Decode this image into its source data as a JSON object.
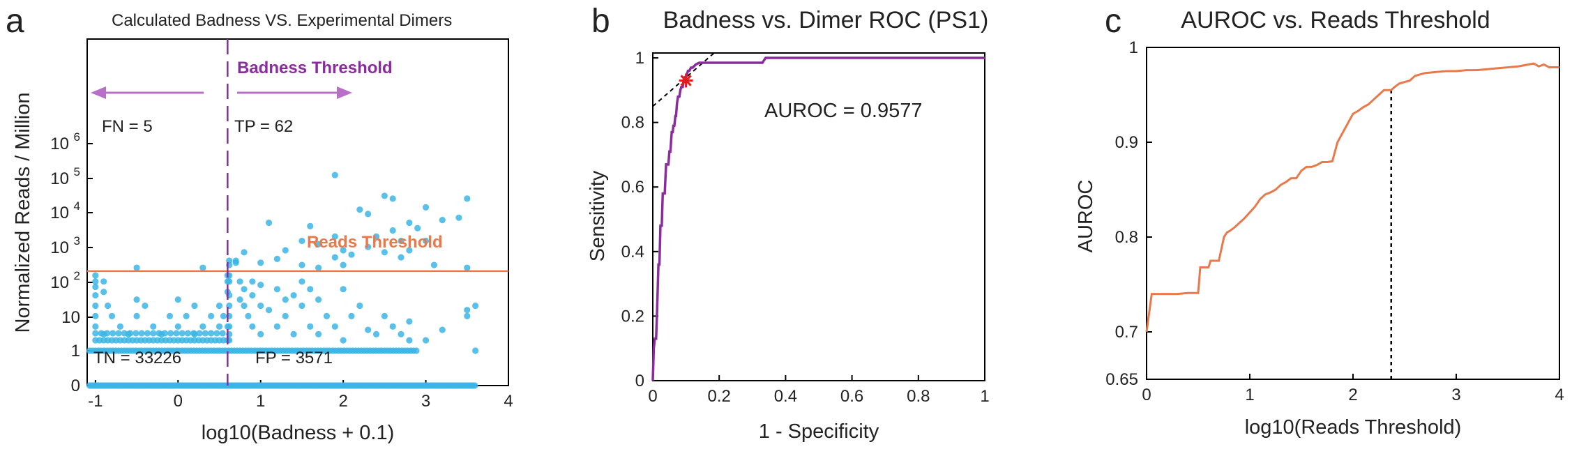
{
  "colors": {
    "scatter": "#3bb5e5",
    "purple": "#8a2b9e",
    "purple_arrow": "#b86fc8",
    "orange": "#e9794a",
    "black": "#000000"
  },
  "panels": {
    "a": {
      "letter": "a"
    },
    "b": {
      "letter": "b"
    },
    "c": {
      "letter": "c"
    }
  },
  "chart_data": [
    {
      "type": "scatter",
      "title": "Calculated Badness VS. Experimental Dimers",
      "xlabel": "log10(Badness + 0.1)",
      "ylabel": "Normalized Reads / Million",
      "xlim": [
        -1.1,
        4
      ],
      "xticks": [
        "-1",
        "0",
        "1",
        "2",
        "3",
        "4"
      ],
      "yscale": "log-like (0, 1, 10, 10^2 ... 10^6)",
      "yticks": [
        "0",
        "1",
        "10",
        "10",
        "10",
        "10",
        "10",
        "10"
      ],
      "ytick_exponents": [
        "",
        "",
        "",
        "2",
        "3",
        "4",
        "5",
        "6"
      ],
      "badness_threshold_x": 0.6,
      "reads_threshold_y": 200,
      "annotations": {
        "badness_threshold": "Badness Threshold",
        "reads_threshold": "Reads Threshold",
        "fn": "FN = 5",
        "tp": "TP = 62",
        "tn": "TN = 33226",
        "fp": "FP = 3571"
      },
      "points_high": [
        [
          -0.5,
          250
        ],
        [
          0.3,
          250
        ],
        [
          1.5,
          300
        ],
        [
          1.2,
          450
        ],
        [
          1.0,
          350
        ],
        [
          1.3,
          800
        ],
        [
          1.5,
          1500
        ],
        [
          1.7,
          1200
        ],
        [
          1.9,
          500
        ],
        [
          1.9,
          2000
        ],
        [
          2.0,
          800
        ],
        [
          2.1,
          600
        ],
        [
          2.2,
          12000
        ],
        [
          2.3,
          1000
        ],
        [
          2.3,
          9000
        ],
        [
          2.4,
          2000
        ],
        [
          2.5,
          30000
        ],
        [
          2.5,
          700
        ],
        [
          2.6,
          25000
        ],
        [
          2.6,
          3000
        ],
        [
          2.7,
          1500
        ],
        [
          2.7,
          500
        ],
        [
          2.8,
          5000
        ],
        [
          2.8,
          800
        ],
        [
          2.9,
          3500
        ],
        [
          3.0,
          14000
        ],
        [
          3.0,
          1500
        ],
        [
          3.1,
          300
        ],
        [
          3.2,
          6000
        ],
        [
          3.4,
          7000
        ],
        [
          3.5,
          25000
        ],
        [
          3.5,
          250
        ],
        [
          1.9,
          120000
        ],
        [
          1.6,
          4000
        ],
        [
          1.7,
          250
        ],
        [
          2.0,
          300
        ],
        [
          1.1,
          5000
        ],
        [
          0.7,
          400
        ],
        [
          0.7,
          350
        ],
        [
          0.8,
          700
        ]
      ],
      "points_low": [
        [
          -1.0,
          150
        ],
        [
          -1.0,
          100
        ],
        [
          -1.0,
          70
        ],
        [
          -1.0,
          40
        ],
        [
          -1.0,
          20
        ],
        [
          -1.0,
          10
        ],
        [
          -1.0,
          5
        ],
        [
          -0.9,
          100
        ],
        [
          -0.9,
          50
        ],
        [
          -0.9,
          3
        ],
        [
          -0.85,
          20
        ],
        [
          -0.8,
          10
        ],
        [
          -0.7,
          5
        ],
        [
          -0.6,
          3
        ],
        [
          -0.5,
          30
        ],
        [
          -0.5,
          10
        ],
        [
          -0.4,
          20
        ],
        [
          -0.3,
          5
        ],
        [
          -0.2,
          3
        ],
        [
          -0.1,
          10
        ],
        [
          0.0,
          30
        ],
        [
          0.0,
          5
        ],
        [
          0.1,
          10
        ],
        [
          0.2,
          20
        ],
        [
          0.2,
          3
        ],
        [
          0.3,
          5
        ],
        [
          0.4,
          10
        ],
        [
          0.5,
          20
        ],
        [
          0.5,
          5
        ],
        [
          0.55,
          10
        ],
        [
          0.6,
          50
        ],
        [
          0.6,
          100
        ],
        [
          0.6,
          150
        ],
        [
          0.6,
          5
        ],
        [
          0.6,
          2
        ],
        [
          0.75,
          100
        ],
        [
          0.75,
          30
        ],
        [
          0.8,
          60
        ],
        [
          0.8,
          20
        ],
        [
          0.85,
          10
        ],
        [
          0.9,
          100
        ],
        [
          0.9,
          40
        ],
        [
          0.9,
          5
        ],
        [
          1.0,
          80
        ],
        [
          1.0,
          20
        ],
        [
          1.0,
          3
        ],
        [
          1.1,
          15
        ],
        [
          1.2,
          60
        ],
        [
          1.2,
          5
        ],
        [
          1.3,
          30
        ],
        [
          1.3,
          10
        ],
        [
          1.4,
          40
        ],
        [
          1.4,
          3
        ],
        [
          1.5,
          20
        ],
        [
          1.6,
          5
        ],
        [
          1.7,
          30
        ],
        [
          1.7,
          3
        ],
        [
          1.8,
          10
        ],
        [
          1.9,
          5
        ],
        [
          2.0,
          60
        ],
        [
          2.0,
          2
        ],
        [
          2.1,
          10
        ],
        [
          2.2,
          20
        ],
        [
          2.3,
          4
        ],
        [
          2.4,
          3
        ],
        [
          2.5,
          10
        ],
        [
          2.6,
          5
        ],
        [
          2.7,
          3
        ],
        [
          2.8,
          7
        ],
        [
          3.0,
          2
        ],
        [
          3.2,
          4
        ],
        [
          3.5,
          10
        ],
        [
          3.5,
          15
        ],
        [
          3.6,
          20
        ],
        [
          3.6,
          1
        ],
        [
          2.8,
          2
        ],
        [
          1.5,
          100
        ],
        [
          1.6,
          60
        ]
      ],
      "points_one_xmax": 2.9,
      "points_zero_xmax": 3.6
    },
    {
      "type": "line",
      "title": "Badness vs. Dimer ROC (PS1)",
      "xlabel": "1 - Specificity",
      "ylabel": "Sensitivity",
      "xlim": [
        0,
        1
      ],
      "ylim": [
        0,
        1
      ],
      "xticks": [
        "0",
        "0.2",
        "0.4",
        "0.6",
        "0.8",
        "1"
      ],
      "yticks": [
        "0",
        "0.2",
        "0.4",
        "0.6",
        "0.8",
        "1"
      ],
      "annotation": "AUROC = 0.9577",
      "optimal_point": [
        0.1,
        0.93
      ],
      "tangent": [
        [
          0,
          0.85
        ],
        [
          0.19,
          1.02
        ]
      ],
      "series": [
        {
          "x": [
            0,
            0.003,
            0.006,
            0.01,
            0.013,
            0.017,
            0.02,
            0.023,
            0.027,
            0.03,
            0.033,
            0.036,
            0.04,
            0.043,
            0.047,
            0.05,
            0.053,
            0.057,
            0.06,
            0.062,
            0.065,
            0.068,
            0.07,
            0.073,
            0.076,
            0.08,
            0.083,
            0.086,
            0.09,
            0.093,
            0.096,
            0.1,
            0.103,
            0.106,
            0.11,
            0.115,
            0.12,
            0.13,
            0.14,
            0.15,
            0.16,
            0.18,
            0.2,
            0.25,
            0.3,
            0.33,
            0.34,
            0.4,
            0.5,
            0.6,
            0.8,
            1.0
          ],
          "y": [
            0,
            0.1,
            0.13,
            0.13,
            0.22,
            0.36,
            0.36,
            0.48,
            0.48,
            0.58,
            0.58,
            0.58,
            0.67,
            0.67,
            0.67,
            0.71,
            0.71,
            0.77,
            0.77,
            0.79,
            0.79,
            0.82,
            0.82,
            0.86,
            0.88,
            0.88,
            0.9,
            0.91,
            0.91,
            0.93,
            0.94,
            0.94,
            0.95,
            0.96,
            0.96,
            0.97,
            0.97,
            0.98,
            0.985,
            0.985,
            0.985,
            0.985,
            0.985,
            0.985,
            0.985,
            0.985,
            1.0,
            1.0,
            1.0,
            1.0,
            1.0,
            1.0
          ]
        }
      ]
    },
    {
      "type": "line",
      "title": "AUROC vs. Reads Threshold",
      "xlabel": "log10(Reads Threshold)",
      "ylabel": "AUROC",
      "xlim": [
        0,
        4
      ],
      "ylim": [
        0.65,
        1
      ],
      "xticks": [
        "0",
        "1",
        "2",
        "3",
        "4"
      ],
      "yticks": [
        "0.65",
        "0.7",
        "0.8",
        "0.9",
        "1"
      ],
      "threshold_x": 2.37,
      "series": [
        {
          "x": [
            0,
            0.05,
            0.1,
            0.2,
            0.3,
            0.4,
            0.45,
            0.5,
            0.52,
            0.6,
            0.62,
            0.7,
            0.72,
            0.75,
            0.78,
            0.8,
            0.85,
            0.9,
            0.95,
            1.0,
            1.05,
            1.1,
            1.15,
            1.2,
            1.25,
            1.3,
            1.35,
            1.4,
            1.45,
            1.5,
            1.55,
            1.6,
            1.65,
            1.7,
            1.75,
            1.8,
            1.85,
            1.9,
            1.95,
            2.0,
            2.05,
            2.1,
            2.15,
            2.2,
            2.25,
            2.3,
            2.37,
            2.4,
            2.45,
            2.55,
            2.6,
            2.7,
            2.8,
            2.9,
            3.0,
            3.1,
            3.2,
            3.3,
            3.4,
            3.5,
            3.6,
            3.7,
            3.75,
            3.8,
            3.85,
            3.9,
            4.0
          ],
          "y": [
            0.7,
            0.74,
            0.74,
            0.74,
            0.74,
            0.741,
            0.741,
            0.741,
            0.768,
            0.768,
            0.775,
            0.775,
            0.785,
            0.8,
            0.805,
            0.806,
            0.81,
            0.815,
            0.82,
            0.826,
            0.832,
            0.84,
            0.845,
            0.847,
            0.85,
            0.855,
            0.858,
            0.862,
            0.862,
            0.87,
            0.874,
            0.874,
            0.876,
            0.879,
            0.879,
            0.88,
            0.9,
            0.91,
            0.92,
            0.93,
            0.933,
            0.937,
            0.94,
            0.945,
            0.95,
            0.955,
            0.955,
            0.958,
            0.962,
            0.965,
            0.97,
            0.973,
            0.974,
            0.975,
            0.975,
            0.976,
            0.976,
            0.977,
            0.978,
            0.979,
            0.98,
            0.982,
            0.983,
            0.98,
            0.982,
            0.979,
            0.979
          ]
        }
      ]
    }
  ]
}
